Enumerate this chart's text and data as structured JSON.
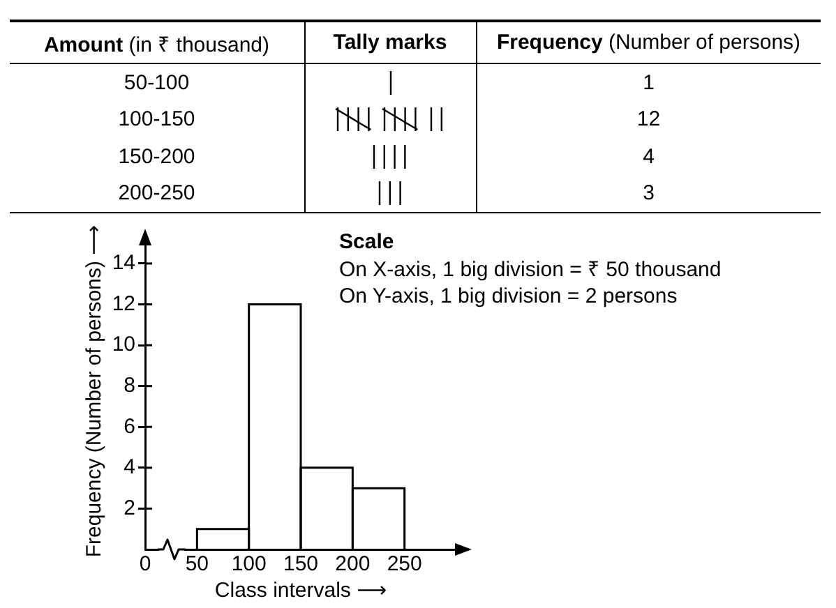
{
  "chart_data": [
    {
      "type": "other",
      "annotations": [
        "Amount (in ₹ thousand)",
        "Tally marks",
        "Frequency (Number of persons)"
      ],
      "categories": [
        "50-100",
        "100-150",
        "150-200",
        "200-250"
      ],
      "values": [
        1,
        12,
        4,
        3
      ],
      "data_labels": true
    },
    {
      "type": "histogram",
      "bins": [
        50,
        100,
        150,
        200,
        250
      ],
      "values": [
        1,
        12,
        4,
        3
      ],
      "color": "#000000",
      "xlabel": "Class intervals ⟶",
      "ylabel": "Frequency (Number of persons) ⟶",
      "xlim": [
        0,
        300
      ],
      "xticks": [
        0,
        50,
        100,
        150,
        200,
        250
      ],
      "ylim": [
        0,
        15.5
      ],
      "yticks": [
        2,
        4,
        6,
        8,
        10,
        12,
        14
      ],
      "annotations": [
        "Scale",
        "On X-axis, 1 big division = ₹ 50 thousand",
        "On Y-axis, 1 big division = 2 persons"
      ]
    }
  ]
}
